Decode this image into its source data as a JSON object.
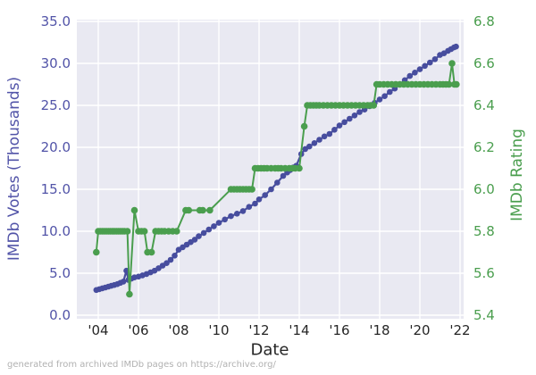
{
  "figure": {
    "xlabel": "Date",
    "ylabel_left": "IMDb Votes (Thousands)",
    "ylabel_right": "IMDb Rating",
    "footer": "generated from archived IMDb pages on https://archive.org/"
  },
  "chart_data": {
    "type": "line",
    "title": "",
    "xlabel": "Date",
    "grid": true,
    "legend": false,
    "footer": "generated from archived IMDb pages on https://archive.org/",
    "colors": {
      "votes": "#474d9e",
      "votes_text": "#5254a8",
      "rating": "#4a9e4e",
      "plot_bg": "#e9e9f2",
      "grid_line": "#ffffff",
      "tick_dark": "#262626",
      "footer_gray": "#b1b1b1"
    },
    "x_axis": {
      "tick_years": [
        2004,
        2006,
        2008,
        2010,
        2012,
        2014,
        2016,
        2018,
        2020,
        2022
      ],
      "tick_labels": [
        "'04",
        "'06",
        "'08",
        "'10",
        "'12",
        "'14",
        "'16",
        "'18",
        "'20",
        "'22"
      ],
      "range": [
        2002.9,
        2022.2
      ]
    },
    "left_axis": {
      "label": "IMDb Votes (Thousands)",
      "tick_values": [
        0,
        5,
        10,
        15,
        20,
        25,
        30,
        35
      ],
      "tick_labels": [
        "0.0",
        "5.0",
        "10.0",
        "15.0",
        "20.0",
        "25.0",
        "30.0",
        "35.0"
      ],
      "range": [
        0,
        35
      ]
    },
    "right_axis": {
      "label": "IMDb Rating",
      "tick_values": [
        5.4,
        5.6,
        5.8,
        6.0,
        6.2,
        6.4,
        6.6,
        6.8
      ],
      "tick_labels": [
        "5.4",
        "5.6",
        "5.8",
        "6.0",
        "6.2",
        "6.4",
        "6.6",
        "6.8"
      ],
      "range": [
        5.4,
        6.8
      ]
    },
    "series": [
      {
        "name": "IMDb Votes (Thousands)",
        "axis": "left",
        "color": "#474d9e",
        "marker": "circle",
        "points": [
          [
            2003.9,
            3.0
          ],
          [
            2004.05,
            3.1
          ],
          [
            2004.2,
            3.2
          ],
          [
            2004.35,
            3.3
          ],
          [
            2004.5,
            3.4
          ],
          [
            2004.65,
            3.5
          ],
          [
            2004.8,
            3.6
          ],
          [
            2004.95,
            3.7
          ],
          [
            2005.1,
            3.85
          ],
          [
            2005.25,
            4.0
          ],
          [
            2005.4,
            5.3
          ],
          [
            2005.5,
            4.2
          ],
          [
            2005.65,
            4.35
          ],
          [
            2005.8,
            4.5
          ],
          [
            2006.0,
            4.6
          ],
          [
            2006.2,
            4.75
          ],
          [
            2006.4,
            4.9
          ],
          [
            2006.6,
            5.1
          ],
          [
            2006.8,
            5.3
          ],
          [
            2007.0,
            5.6
          ],
          [
            2007.2,
            5.9
          ],
          [
            2007.4,
            6.2
          ],
          [
            2007.6,
            6.6
          ],
          [
            2007.8,
            7.1
          ],
          [
            2008.0,
            7.8
          ],
          [
            2008.2,
            8.1
          ],
          [
            2008.4,
            8.4
          ],
          [
            2008.6,
            8.7
          ],
          [
            2008.8,
            9.0
          ],
          [
            2009.0,
            9.4
          ],
          [
            2009.25,
            9.8
          ],
          [
            2009.5,
            10.2
          ],
          [
            2009.75,
            10.6
          ],
          [
            2010.0,
            11.0
          ],
          [
            2010.3,
            11.4
          ],
          [
            2010.6,
            11.8
          ],
          [
            2010.9,
            12.1
          ],
          [
            2011.2,
            12.4
          ],
          [
            2011.5,
            12.9
          ],
          [
            2011.8,
            13.3
          ],
          [
            2012.0,
            13.8
          ],
          [
            2012.3,
            14.3
          ],
          [
            2012.6,
            15.0
          ],
          [
            2012.9,
            15.8
          ],
          [
            2013.2,
            16.6
          ],
          [
            2013.4,
            17.0
          ],
          [
            2013.55,
            17.3
          ],
          [
            2013.7,
            17.6
          ],
          [
            2013.85,
            17.8
          ],
          [
            2014.1,
            19.2
          ],
          [
            2014.3,
            19.8
          ],
          [
            2014.5,
            20.1
          ],
          [
            2014.75,
            20.5
          ],
          [
            2015.0,
            20.9
          ],
          [
            2015.25,
            21.3
          ],
          [
            2015.5,
            21.6
          ],
          [
            2015.75,
            22.1
          ],
          [
            2016.0,
            22.6
          ],
          [
            2016.25,
            23.0
          ],
          [
            2016.5,
            23.4
          ],
          [
            2016.75,
            23.8
          ],
          [
            2017.0,
            24.2
          ],
          [
            2017.25,
            24.5
          ],
          [
            2017.5,
            24.9
          ],
          [
            2017.75,
            25.3
          ],
          [
            2018.0,
            25.7
          ],
          [
            2018.25,
            26.1
          ],
          [
            2018.5,
            26.6
          ],
          [
            2018.75,
            27.0
          ],
          [
            2019.0,
            27.5
          ],
          [
            2019.25,
            28.0
          ],
          [
            2019.5,
            28.5
          ],
          [
            2019.75,
            28.9
          ],
          [
            2020.0,
            29.3
          ],
          [
            2020.25,
            29.7
          ],
          [
            2020.5,
            30.1
          ],
          [
            2020.75,
            30.5
          ],
          [
            2021.0,
            31.0
          ],
          [
            2021.2,
            31.2
          ],
          [
            2021.4,
            31.5
          ],
          [
            2021.55,
            31.7
          ],
          [
            2021.7,
            31.9
          ],
          [
            2021.8,
            32.0
          ]
        ]
      },
      {
        "name": "IMDb Rating",
        "axis": "right",
        "color": "#4a9e4e",
        "marker": "circle",
        "points": [
          [
            2003.9,
            5.7
          ],
          [
            2004.0,
            5.8
          ],
          [
            2004.1,
            5.8
          ],
          [
            2004.2,
            5.8
          ],
          [
            2004.3,
            5.8
          ],
          [
            2004.4,
            5.8
          ],
          [
            2004.5,
            5.8
          ],
          [
            2004.6,
            5.8
          ],
          [
            2004.7,
            5.8
          ],
          [
            2004.8,
            5.8
          ],
          [
            2004.9,
            5.8
          ],
          [
            2005.0,
            5.8
          ],
          [
            2005.1,
            5.8
          ],
          [
            2005.2,
            5.8
          ],
          [
            2005.3,
            5.8
          ],
          [
            2005.45,
            5.8
          ],
          [
            2005.55,
            5.5
          ],
          [
            2005.8,
            5.9
          ],
          [
            2006.0,
            5.8
          ],
          [
            2006.15,
            5.8
          ],
          [
            2006.3,
            5.8
          ],
          [
            2006.45,
            5.7
          ],
          [
            2006.65,
            5.7
          ],
          [
            2006.85,
            5.8
          ],
          [
            2007.0,
            5.8
          ],
          [
            2007.15,
            5.8
          ],
          [
            2007.3,
            5.8
          ],
          [
            2007.5,
            5.8
          ],
          [
            2007.7,
            5.8
          ],
          [
            2007.9,
            5.8
          ],
          [
            2008.35,
            5.9
          ],
          [
            2008.5,
            5.9
          ],
          [
            2009.05,
            5.9
          ],
          [
            2009.2,
            5.9
          ],
          [
            2009.55,
            5.9
          ],
          [
            2010.6,
            6.0
          ],
          [
            2010.75,
            6.0
          ],
          [
            2010.9,
            6.0
          ],
          [
            2011.05,
            6.0
          ],
          [
            2011.2,
            6.0
          ],
          [
            2011.35,
            6.0
          ],
          [
            2011.5,
            6.0
          ],
          [
            2011.65,
            6.0
          ],
          [
            2011.8,
            6.1
          ],
          [
            2011.95,
            6.1
          ],
          [
            2012.1,
            6.1
          ],
          [
            2012.25,
            6.1
          ],
          [
            2012.4,
            6.1
          ],
          [
            2012.6,
            6.1
          ],
          [
            2012.8,
            6.1
          ],
          [
            2012.95,
            6.1
          ],
          [
            2013.1,
            6.1
          ],
          [
            2013.3,
            6.1
          ],
          [
            2013.5,
            6.1
          ],
          [
            2013.65,
            6.1
          ],
          [
            2013.8,
            6.1
          ],
          [
            2014.0,
            6.1
          ],
          [
            2014.25,
            6.3
          ],
          [
            2014.4,
            6.4
          ],
          [
            2014.55,
            6.4
          ],
          [
            2014.7,
            6.4
          ],
          [
            2014.85,
            6.4
          ],
          [
            2015.0,
            6.4
          ],
          [
            2015.2,
            6.4
          ],
          [
            2015.4,
            6.4
          ],
          [
            2015.6,
            6.4
          ],
          [
            2015.8,
            6.4
          ],
          [
            2016.0,
            6.4
          ],
          [
            2016.2,
            6.4
          ],
          [
            2016.4,
            6.4
          ],
          [
            2016.6,
            6.4
          ],
          [
            2016.8,
            6.4
          ],
          [
            2017.0,
            6.4
          ],
          [
            2017.2,
            6.4
          ],
          [
            2017.4,
            6.4
          ],
          [
            2017.55,
            6.4
          ],
          [
            2017.7,
            6.4
          ],
          [
            2017.85,
            6.5
          ],
          [
            2018.0,
            6.5
          ],
          [
            2018.2,
            6.5
          ],
          [
            2018.4,
            6.5
          ],
          [
            2018.6,
            6.5
          ],
          [
            2018.8,
            6.5
          ],
          [
            2019.0,
            6.5
          ],
          [
            2019.2,
            6.5
          ],
          [
            2019.4,
            6.5
          ],
          [
            2019.6,
            6.5
          ],
          [
            2019.8,
            6.5
          ],
          [
            2020.0,
            6.5
          ],
          [
            2020.2,
            6.5
          ],
          [
            2020.4,
            6.5
          ],
          [
            2020.6,
            6.5
          ],
          [
            2020.8,
            6.5
          ],
          [
            2021.0,
            6.5
          ],
          [
            2021.15,
            6.5
          ],
          [
            2021.3,
            6.5
          ],
          [
            2021.45,
            6.5
          ],
          [
            2021.6,
            6.6
          ],
          [
            2021.72,
            6.5
          ],
          [
            2021.82,
            6.5
          ]
        ]
      }
    ]
  }
}
